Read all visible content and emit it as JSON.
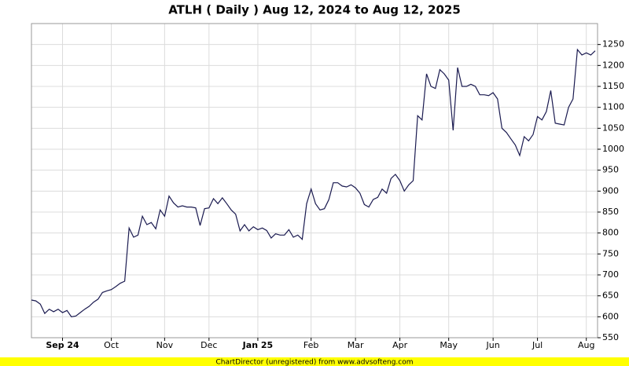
{
  "chart_data": {
    "type": "line",
    "title": "ATLH ( Daily ) Aug 12, 2024 to Aug 12, 2025",
    "categories": [
      null,
      null,
      null,
      null,
      null,
      null,
      null,
      "Sep 24",
      null,
      null,
      null,
      null,
      null,
      null,
      null,
      null,
      null,
      null,
      "Oct",
      null,
      null,
      null,
      null,
      null,
      null,
      null,
      null,
      null,
      null,
      null,
      "Nov",
      null,
      null,
      null,
      null,
      null,
      null,
      null,
      null,
      null,
      "Dec",
      null,
      null,
      null,
      null,
      null,
      null,
      null,
      null,
      null,
      null,
      "Jan 25",
      null,
      null,
      null,
      null,
      null,
      null,
      null,
      null,
      null,
      null,
      null,
      "Feb",
      null,
      null,
      null,
      null,
      null,
      null,
      null,
      null,
      null,
      "Mar",
      null,
      null,
      null,
      null,
      null,
      null,
      null,
      null,
      null,
      "Apr",
      null,
      null,
      null,
      null,
      null,
      null,
      null,
      null,
      null,
      null,
      "May",
      null,
      null,
      null,
      null,
      null,
      null,
      null,
      null,
      null,
      "Jun",
      null,
      null,
      null,
      null,
      null,
      null,
      null,
      null,
      null,
      "Jul",
      null,
      null,
      null,
      null,
      null,
      null,
      null,
      null,
      null,
      null,
      "Aug",
      null,
      null
    ],
    "series": [
      {
        "name": "ATLH",
        "color": "#1a1a50",
        "values": [
          640,
          638,
          630,
          608,
          618,
          612,
          618,
          610,
          615,
          600,
          602,
          610,
          618,
          625,
          635,
          642,
          658,
          662,
          665,
          672,
          680,
          685,
          812,
          790,
          795,
          840,
          820,
          825,
          810,
          855,
          840,
          888,
          872,
          862,
          865,
          862,
          862,
          860,
          818,
          858,
          860,
          882,
          870,
          884,
          870,
          855,
          845,
          805,
          820,
          805,
          815,
          808,
          812,
          806,
          788,
          798,
          795,
          795,
          808,
          790,
          795,
          785,
          870,
          905,
          870,
          855,
          858,
          880,
          920,
          920,
          912,
          910,
          915,
          908,
          895,
          868,
          862,
          880,
          885,
          905,
          895,
          930,
          940,
          925,
          900,
          915,
          925,
          1080,
          1070,
          1180,
          1150,
          1145,
          1190,
          1180,
          1165,
          1045,
          1195,
          1150,
          1150,
          1155,
          1150,
          1130,
          1130,
          1128,
          1135,
          1120,
          1050,
          1040,
          1025,
          1010,
          985,
          1030,
          1020,
          1035,
          1078,
          1070,
          1090,
          1140,
          1062,
          1060,
          1058,
          1100,
          1120,
          1238,
          1225,
          1230,
          1225,
          1235
        ]
      }
    ],
    "ylim": [
      550,
      1300
    ],
    "yticks": [
      550,
      600,
      650,
      700,
      750,
      800,
      850,
      900,
      950,
      1000,
      1050,
      1100,
      1150,
      1200,
      1250
    ],
    "grid": true,
    "footer": "ChartDirector (unregistered) from www.advsofteng.com"
  }
}
